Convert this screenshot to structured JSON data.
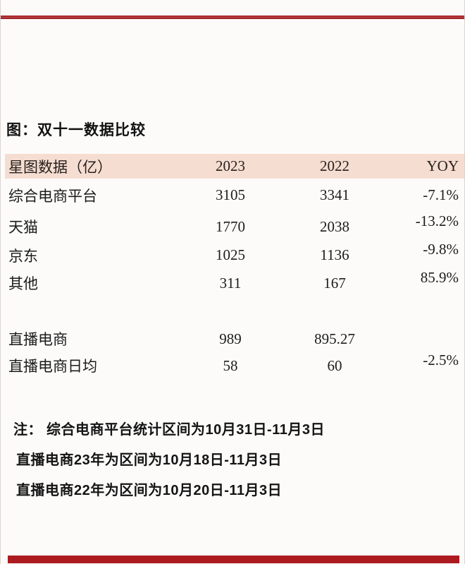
{
  "title": "图：双十一数据比较",
  "colors": {
    "accent_red": "#9e1d20",
    "bottom_bar_red": "#ac1b20",
    "header_bg": "#f6ddd1",
    "text": "#1c1c1c"
  },
  "table": {
    "header": {
      "metric": "星图数据（亿）",
      "col_2023": "2023",
      "col_2022": "2022",
      "col_yoy": "YOY"
    },
    "rows": [
      {
        "label": "综合电商平台",
        "v2023": "3105",
        "v2022": "3341",
        "yoy": "-7.1%"
      },
      {
        "label": "天猫",
        "v2023": "1770",
        "v2022": "2038",
        "yoy": "-13.2%"
      },
      {
        "label": "京东",
        "v2023": "1025",
        "v2022": "1136",
        "yoy": "-9.8%"
      },
      {
        "label": "其他",
        "v2023": "311",
        "v2022": "167",
        "yoy": "85.9%"
      },
      {
        "label": "直播电商",
        "v2023": "989",
        "v2022": "895.27",
        "yoy": ""
      },
      {
        "label": "直播电商日均",
        "v2023": "58",
        "v2022": "60",
        "yoy": "-2.5%"
      }
    ]
  },
  "notes": [
    "注： 综合电商平台统计区间为10月31日-11月3日",
    "直播电商23年为区间为10月18日-11月3日",
    "直播电商22年为区间为10月20日-11月3日"
  ]
}
